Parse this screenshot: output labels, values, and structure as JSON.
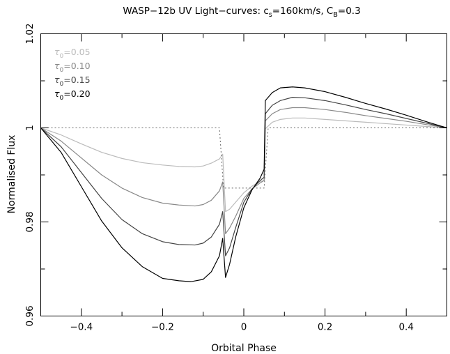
{
  "chart_data": {
    "type": "line",
    "title": {
      "prefix": "WASP−12b UV Light−curves: c",
      "sub1": "s",
      "mid": "=160km/s, C",
      "sub2": "B",
      "suffix": "=0.3"
    },
    "xlabel": "Orbital Phase",
    "ylabel": "Normalised Flux",
    "xlim": [
      -0.5,
      0.5
    ],
    "ylim": [
      0.96,
      1.02
    ],
    "x_major_ticks": [
      -0.4,
      -0.2,
      0,
      0.2,
      0.4
    ],
    "x_tick_labels": [
      "−0.4",
      "−0.2",
      "0",
      "0.2",
      "0.4"
    ],
    "y_major_ticks": [
      0.96,
      0.98,
      1.0,
      1.02
    ],
    "y_tick_labels": [
      "0.96",
      "0.98",
      "1",
      "1.02"
    ],
    "grid": false,
    "legend_position": "top-left",
    "series": [
      {
        "name": "τ0=0.05",
        "label_sym": "τ",
        "label_sub": "0",
        "label_val": "=0.05",
        "color": "#bbbbbb",
        "dash": false,
        "points": [
          [
            -0.5,
            1.0
          ],
          [
            -0.45,
            0.9985
          ],
          [
            -0.4,
            0.9966
          ],
          [
            -0.35,
            0.9948
          ],
          [
            -0.3,
            0.9935
          ],
          [
            -0.25,
            0.9926
          ],
          [
            -0.2,
            0.9921
          ],
          [
            -0.16,
            0.9918
          ],
          [
            -0.12,
            0.9917
          ],
          [
            -0.1,
            0.9919
          ],
          [
            -0.08,
            0.9925
          ],
          [
            -0.06,
            0.9934
          ],
          [
            -0.052,
            0.9944
          ],
          [
            -0.045,
            0.9822
          ],
          [
            -0.035,
            0.9827
          ],
          [
            -0.02,
            0.9842
          ],
          [
            0.0,
            0.9862
          ],
          [
            0.02,
            0.9876
          ],
          [
            0.04,
            0.9886
          ],
          [
            0.05,
            0.9888
          ],
          [
            0.053,
            0.9998
          ],
          [
            0.07,
            1.0012
          ],
          [
            0.09,
            1.0018
          ],
          [
            0.12,
            1.0021
          ],
          [
            0.15,
            1.0021
          ],
          [
            0.2,
            1.0018
          ],
          [
            0.25,
            1.0015
          ],
          [
            0.3,
            1.0012
          ],
          [
            0.35,
            1.0009
          ],
          [
            0.4,
            1.0006
          ],
          [
            0.45,
            1.0003
          ],
          [
            0.5,
            1.0
          ]
        ]
      },
      {
        "name": "τ0=0.10",
        "label_sym": "τ",
        "label_sub": "0",
        "label_val": "=0.10",
        "color": "#888888",
        "dash": false,
        "points": [
          [
            -0.5,
            1.0
          ],
          [
            -0.45,
            0.9972
          ],
          [
            -0.4,
            0.9936
          ],
          [
            -0.35,
            0.99
          ],
          [
            -0.3,
            0.9872
          ],
          [
            -0.25,
            0.9852
          ],
          [
            -0.2,
            0.984
          ],
          [
            -0.16,
            0.9836
          ],
          [
            -0.12,
            0.9834
          ],
          [
            -0.1,
            0.9837
          ],
          [
            -0.08,
            0.9846
          ],
          [
            -0.06,
            0.9866
          ],
          [
            -0.052,
            0.9885
          ],
          [
            -0.045,
            0.9775
          ],
          [
            -0.035,
            0.9787
          ],
          [
            -0.02,
            0.9812
          ],
          [
            0.0,
            0.985
          ],
          [
            0.02,
            0.987
          ],
          [
            0.04,
            0.9883
          ],
          [
            0.05,
            0.9888
          ],
          [
            0.053,
            1.0015
          ],
          [
            0.07,
            1.003
          ],
          [
            0.09,
            1.0039
          ],
          [
            0.12,
            1.0043
          ],
          [
            0.15,
            1.0043
          ],
          [
            0.2,
            1.0039
          ],
          [
            0.25,
            1.0033
          ],
          [
            0.3,
            1.0026
          ],
          [
            0.35,
            1.002
          ],
          [
            0.4,
            1.0014
          ],
          [
            0.45,
            1.0007
          ],
          [
            0.5,
            1.0
          ]
        ]
      },
      {
        "name": "τ0=0.15",
        "label_sym": "τ",
        "label_sub": "0",
        "label_val": "=0.15",
        "color": "#444444",
        "dash": false,
        "points": [
          [
            -0.5,
            1.0
          ],
          [
            -0.45,
            0.996
          ],
          [
            -0.4,
            0.9905
          ],
          [
            -0.35,
            0.985
          ],
          [
            -0.3,
            0.9805
          ],
          [
            -0.25,
            0.9775
          ],
          [
            -0.2,
            0.9758
          ],
          [
            -0.16,
            0.9752
          ],
          [
            -0.12,
            0.9751
          ],
          [
            -0.1,
            0.9755
          ],
          [
            -0.08,
            0.9768
          ],
          [
            -0.06,
            0.9795
          ],
          [
            -0.052,
            0.9822
          ],
          [
            -0.045,
            0.9728
          ],
          [
            -0.035,
            0.9745
          ],
          [
            -0.02,
            0.9788
          ],
          [
            0.0,
            0.9842
          ],
          [
            0.02,
            0.987
          ],
          [
            0.04,
            0.9888
          ],
          [
            0.05,
            0.9895
          ],
          [
            0.053,
            1.003
          ],
          [
            0.07,
            1.0048
          ],
          [
            0.09,
            1.0058
          ],
          [
            0.12,
            1.0065
          ],
          [
            0.15,
            1.0064
          ],
          [
            0.2,
            1.0058
          ],
          [
            0.25,
            1.0049
          ],
          [
            0.3,
            1.0039
          ],
          [
            0.35,
            1.003
          ],
          [
            0.4,
            1.002
          ],
          [
            0.45,
            1.001
          ],
          [
            0.5,
            1.0
          ]
        ]
      },
      {
        "name": "τ0=0.20",
        "label_sym": "τ",
        "label_sub": "0",
        "label_val": "=0.20",
        "color": "#000000",
        "dash": false,
        "points": [
          [
            -0.5,
            1.0
          ],
          [
            -0.45,
            0.9948
          ],
          [
            -0.4,
            0.9875
          ],
          [
            -0.35,
            0.9802
          ],
          [
            -0.3,
            0.9745
          ],
          [
            -0.25,
            0.9705
          ],
          [
            -0.2,
            0.968
          ],
          [
            -0.16,
            0.9675
          ],
          [
            -0.13,
            0.9673
          ],
          [
            -0.1,
            0.9678
          ],
          [
            -0.08,
            0.9694
          ],
          [
            -0.06,
            0.9728
          ],
          [
            -0.052,
            0.9765
          ],
          [
            -0.045,
            0.9682
          ],
          [
            -0.035,
            0.971
          ],
          [
            -0.02,
            0.9768
          ],
          [
            0.0,
            0.983
          ],
          [
            0.02,
            0.9868
          ],
          [
            0.04,
            0.9893
          ],
          [
            0.05,
            0.9912
          ],
          [
            0.053,
            1.0058
          ],
          [
            0.07,
            1.0075
          ],
          [
            0.09,
            1.0085
          ],
          [
            0.12,
            1.0087
          ],
          [
            0.15,
            1.0085
          ],
          [
            0.2,
            1.0077
          ],
          [
            0.25,
            1.0065
          ],
          [
            0.3,
            1.0052
          ],
          [
            0.35,
            1.004
          ],
          [
            0.4,
            1.0027
          ],
          [
            0.45,
            1.0013
          ],
          [
            0.5,
            1.0
          ]
        ]
      },
      {
        "name": "",
        "color": "#666666",
        "dash": true,
        "points": [
          [
            -0.5,
            1.0
          ],
          [
            -0.06,
            1.0
          ],
          [
            -0.05,
            0.9872
          ],
          [
            0.05,
            0.9872
          ],
          [
            0.06,
            1.0
          ],
          [
            0.5,
            1.0
          ]
        ]
      }
    ]
  }
}
